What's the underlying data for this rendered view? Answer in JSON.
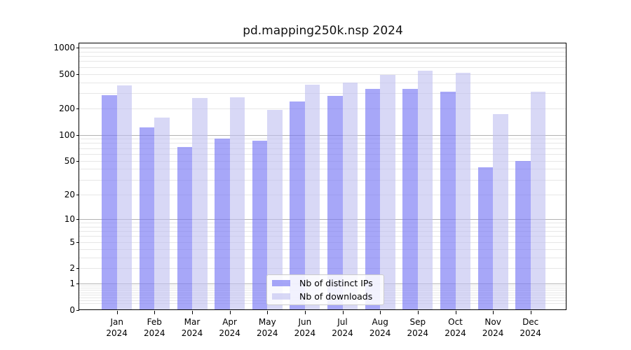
{
  "title": "pd.mapping250k.nsp 2024",
  "legend": {
    "items": [
      {
        "label": "Nb of distinct IPs",
        "series_key": "distinct-ips"
      },
      {
        "label": "Nb of downloads",
        "series_key": "downloads"
      }
    ]
  },
  "colors": {
    "distinct_ips_bar": "#7676f4a3",
    "downloads_bar": "#bebef099",
    "distinct_ips_rendered": "#a8a8f8",
    "downloads_rendered": "#d8d8f5",
    "gridline_major": "#b3b3b3",
    "gridline_minor": "#e7e7e7",
    "legend_border": "#cccccc",
    "axis": "#000000",
    "text": "#000000"
  },
  "chart_data": {
    "type": "bar",
    "title": "pd.mapping250k.nsp 2024",
    "xlabel": "",
    "ylabel": "",
    "yscale": "log(1+y)",
    "ylim": [
      0,
      1100
    ],
    "grid": true,
    "legend_position": "lower center",
    "categories": [
      "Jan 2024",
      "Feb 2024",
      "Mar 2024",
      "Apr 2024",
      "May 2024",
      "Jun 2024",
      "Jul 2024",
      "Aug 2024",
      "Sep 2024",
      "Oct 2024",
      "Nov 2024",
      "Dec 2024"
    ],
    "series": [
      {
        "key": "distinct-ips",
        "name": "Nb of distinct IPs",
        "values": [
          285,
          122,
          72,
          90,
          85,
          240,
          281,
          338,
          334,
          312,
          42,
          50
        ]
      },
      {
        "key": "downloads",
        "name": "Nb of downloads",
        "values": [
          370,
          157,
          265,
          268,
          194,
          377,
          396,
          484,
          543,
          514,
          174,
          310
        ]
      }
    ],
    "yticks": [
      0,
      1,
      2,
      5,
      10,
      20,
      50,
      100,
      200,
      500,
      1000
    ],
    "ytick_labels": [
      "0",
      "1",
      "2",
      "5",
      "10",
      "20",
      "50",
      "100",
      "200",
      "500",
      "1000"
    ],
    "major_gridlines": [
      1,
      10,
      100,
      1000
    ],
    "minor_gridlines": [
      0.2,
      0.3,
      0.4,
      0.5,
      0.6,
      0.7,
      0.8,
      0.9,
      2,
      3,
      4,
      5,
      6,
      7,
      8,
      9,
      20,
      30,
      40,
      50,
      60,
      70,
      80,
      90,
      200,
      300,
      400,
      500,
      600,
      700,
      800,
      900
    ]
  }
}
